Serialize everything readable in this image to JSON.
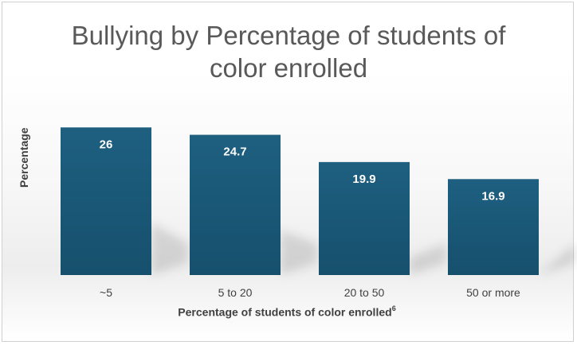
{
  "chart_data": {
    "type": "bar",
    "title": "Bullying by Percentage of students of color enrolled",
    "xlabel": "Percentage of students of color enrolled",
    "xlabel_superscript": "6",
    "ylabel": "Percentage",
    "categories": [
      "~5",
      "5 to 20",
      "20 to 50",
      "50 or more"
    ],
    "values": [
      26,
      24.7,
      19.9,
      16.9
    ],
    "data_labels": [
      "26",
      "24.7",
      "19.9",
      "16.9"
    ],
    "ylim": [
      0,
      28
    ],
    "grid": false,
    "legend": "none",
    "colors": {
      "bar_top": "#1e5f80",
      "bar_bottom": "#16506d",
      "label": "#ffffff"
    }
  }
}
